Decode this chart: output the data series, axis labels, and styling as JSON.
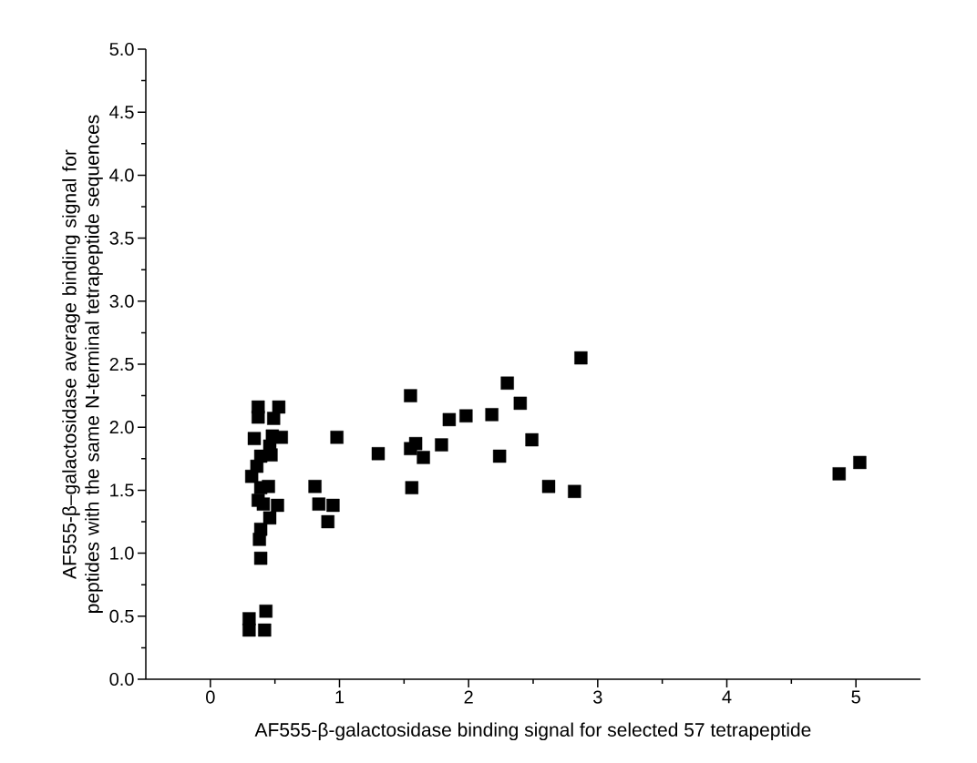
{
  "chart_data": {
    "type": "scatter",
    "xlabel": "AF555-β-galactosidase binding signal for selected 57 tetrapeptide",
    "ylabel": "AF555-β–galactosidase average binding signal for peptides with the same N-terminal tetrapeptide sequences",
    "marker": "square",
    "xlim": [
      -0.5,
      5.5
    ],
    "ylim": [
      0,
      5
    ],
    "xticks": [
      0,
      1,
      2,
      3,
      4,
      5
    ],
    "yticks": [
      {
        "value": 0,
        "label": "0.0"
      },
      {
        "value": 0.5,
        "label": "0.5"
      },
      {
        "value": 1,
        "label": "1.0"
      },
      {
        "value": 1.5,
        "label": "1.5"
      },
      {
        "value": 2,
        "label": "2.0"
      },
      {
        "value": 2.5,
        "label": "2.5"
      },
      {
        "value": 3,
        "label": "3.0"
      },
      {
        "value": 3.5,
        "label": "3.5"
      },
      {
        "value": 4,
        "label": "4.0"
      },
      {
        "value": 4.5,
        "label": "4.5"
      },
      {
        "value": 5,
        "label": "5.0"
      }
    ],
    "series": [
      {
        "color": "#000000",
        "x": [
          2.3,
          2.4,
          1.98,
          2.18,
          2.49,
          2.24,
          2.62,
          2.82,
          4.87,
          5.03,
          2.87,
          1.55,
          1.85,
          1.59,
          1.55,
          1.65,
          1.79,
          1.3,
          0.98,
          1.56,
          0.81,
          0.84,
          0.95,
          0.91,
          0.37,
          0.37,
          0.53,
          0.49,
          0.34,
          0.48,
          0.55,
          0.46,
          0.47,
          0.39,
          0.36,
          0.32,
          0.39,
          0.45,
          0.37,
          0.41,
          0.52,
          0.46,
          0.39,
          0.38,
          0.39,
          0.43,
          0.3,
          0.3,
          0.42
        ],
        "values": [
          2.35,
          2.19,
          2.09,
          2.1,
          1.9,
          1.77,
          1.53,
          1.49,
          1.63,
          1.72,
          2.55,
          2.25,
          2.06,
          1.87,
          1.83,
          1.76,
          1.86,
          1.79,
          1.92,
          1.52,
          1.53,
          1.39,
          1.38,
          1.25,
          2.16,
          2.08,
          2.16,
          2.07,
          1.91,
          1.93,
          1.92,
          1.85,
          1.78,
          1.77,
          1.69,
          1.61,
          1.52,
          1.53,
          1.42,
          1.39,
          1.38,
          1.28,
          1.19,
          1.11,
          0.96,
          0.54,
          0.48,
          0.39,
          0.39
        ]
      }
    ]
  }
}
